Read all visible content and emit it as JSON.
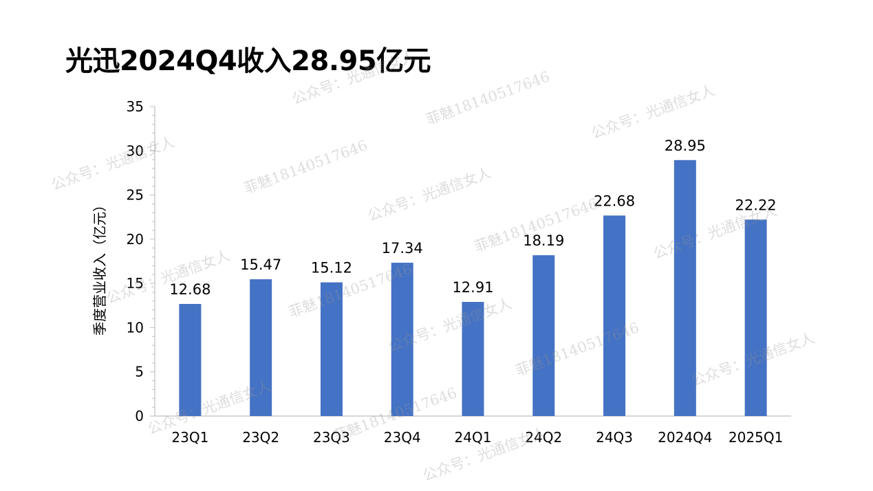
{
  "title": "光迅2024Q4收入28.95亿元",
  "watermarks": {
    "account": "公众号：光通信女人",
    "contact": "菲魅18140517646"
  },
  "colors": {
    "bar": "#4472C4",
    "axis": "#BFBFBF",
    "text": "#000000"
  },
  "chart_data": {
    "type": "bar",
    "title": "光迅2024Q4收入28.95亿元",
    "xlabel": "",
    "ylabel": "季度营业收入（亿元）",
    "categories": [
      "23Q1",
      "23Q2",
      "23Q3",
      "23Q4",
      "24Q1",
      "24Q2",
      "24Q3",
      "2024Q4",
      "2025Q1"
    ],
    "values": [
      12.68,
      15.47,
      15.12,
      17.34,
      12.91,
      18.19,
      22.68,
      28.95,
      22.22
    ],
    "value_labels": [
      "12.68",
      "15.47",
      "15.12",
      "17.34",
      "12.91",
      "18.19",
      "22.68",
      "28.95",
      "22.22"
    ],
    "ylim": [
      0,
      35
    ],
    "yticks": [
      0,
      5,
      10,
      15,
      20,
      25,
      30,
      35
    ],
    "grid": false,
    "legend": "none"
  }
}
